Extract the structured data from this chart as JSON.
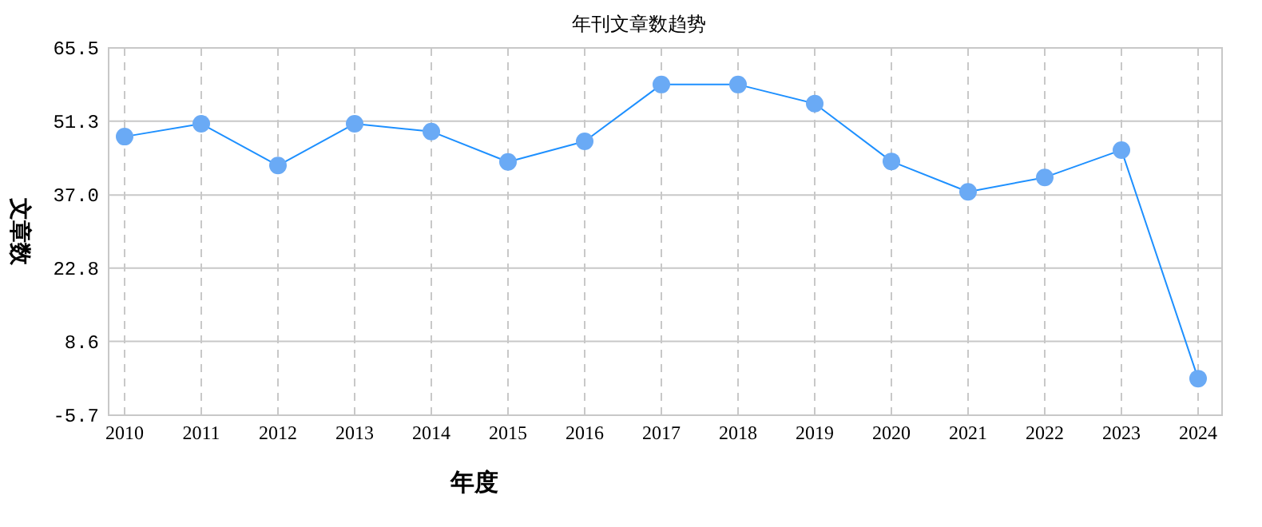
{
  "chart_data": {
    "type": "line",
    "title": "年刊文章数趋势",
    "xlabel": "年度",
    "ylabel": "文章数",
    "categories": [
      "2010",
      "2011",
      "2012",
      "2013",
      "2014",
      "2015",
      "2016",
      "2017",
      "2018",
      "2019",
      "2020",
      "2021",
      "2022",
      "2023",
      "2024"
    ],
    "series": [
      {
        "color": "#1e90ff",
        "values": [
          48.3,
          50.8,
          42.7,
          50.8,
          49.3,
          43.4,
          47.4,
          58.4,
          58.4,
          54.7,
          43.5,
          37.6,
          40.4,
          45.7,
          1.4
        ]
      }
    ],
    "ylim": [
      -5.7,
      65.5
    ],
    "yticks": [
      {
        "value": -5.7,
        "label": "-5.7"
      },
      {
        "value": 8.6,
        "label": "8.6"
      },
      {
        "value": 22.8,
        "label": "22.8"
      },
      {
        "value": 37,
        "label": "37.0"
      },
      {
        "value": 51.3,
        "label": "51.3"
      },
      {
        "value": 65.5,
        "label": "65.5"
      }
    ],
    "grid": true,
    "marker": "circle",
    "line_style": "solid"
  }
}
